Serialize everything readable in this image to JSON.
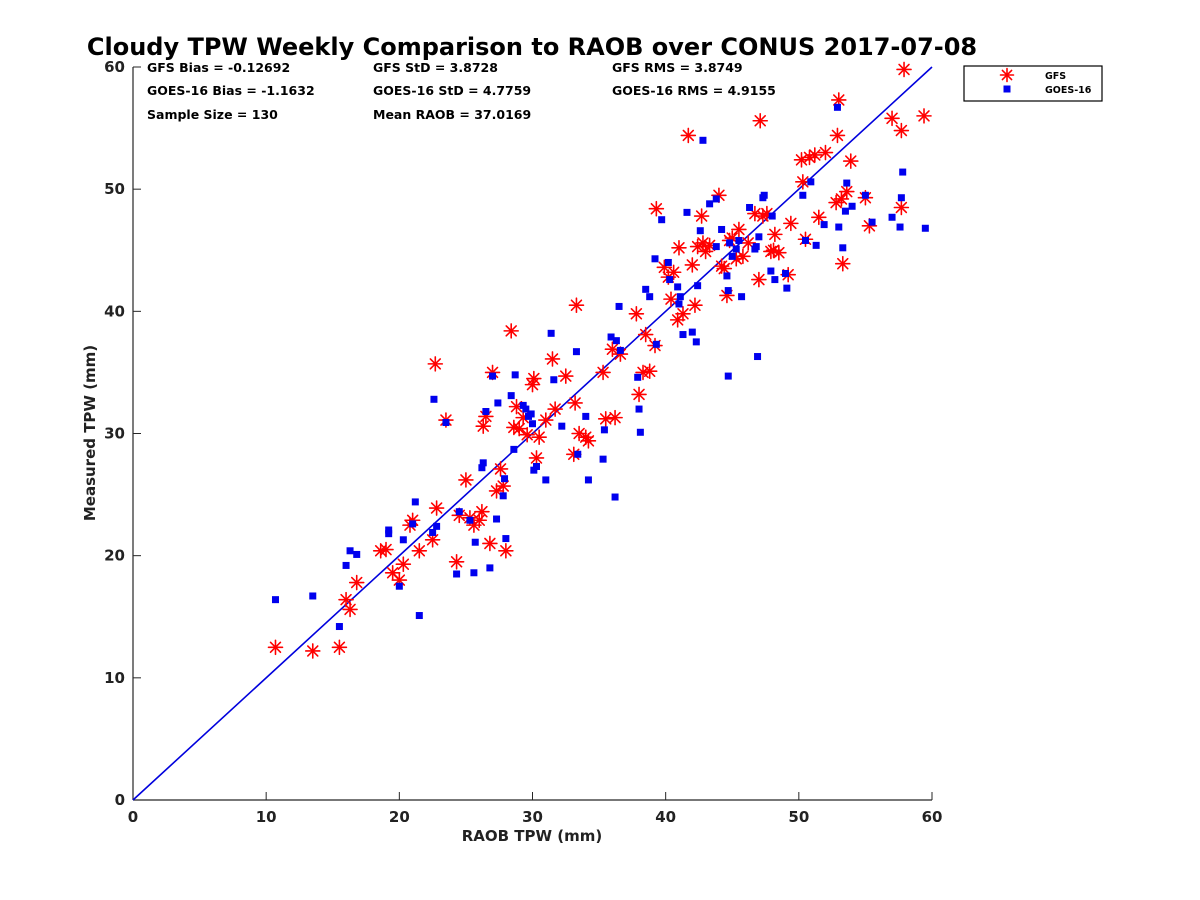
{
  "chart_data": {
    "type": "scatter",
    "title": "Cloudy TPW Weekly Comparison to RAOB over CONUS 2017-07-08",
    "xlabel": "RAOB TPW (mm)",
    "ylabel": "Measured TPW (mm)",
    "xlim": [
      0,
      60
    ],
    "ylim": [
      0,
      60
    ],
    "xticks": [
      0,
      10,
      20,
      30,
      40,
      50,
      60
    ],
    "yticks": [
      0,
      10,
      20,
      30,
      40,
      50,
      60
    ],
    "grid": false,
    "legend_position": "outside-top-right",
    "reference_line": {
      "from": [
        0,
        0
      ],
      "to": [
        60,
        60
      ],
      "color": "#0000dd"
    },
    "stats": {
      "gfs_bias": "GFS Bias = -0.12692",
      "goes_bias": "GOES-16 Bias = -1.1632",
      "sample_size": "Sample Size = 130",
      "gfs_std": "GFS StD = 3.8728",
      "goes_std": "GOES-16 StD = 4.7759",
      "mean_raob": "Mean RAOB = 37.0169",
      "gfs_rms": "GFS RMS = 3.8749",
      "goes_rms": "GOES-16 RMS = 4.9155"
    },
    "series": [
      {
        "name": "GFS",
        "marker": "asterisk",
        "color": "#ff0000",
        "points": [
          [
            10.7,
            12.5
          ],
          [
            13.5,
            12.2
          ],
          [
            15.5,
            12.5
          ],
          [
            16,
            16.4
          ],
          [
            16.3,
            15.6
          ],
          [
            16.8,
            17.8
          ],
          [
            18.6,
            20.4
          ],
          [
            19,
            20.5
          ],
          [
            19.5,
            18.6
          ],
          [
            20,
            18
          ],
          [
            20.3,
            19.3
          ],
          [
            20.8,
            22.5
          ],
          [
            21,
            22.9
          ],
          [
            21.5,
            20.4
          ],
          [
            22.5,
            21.3
          ],
          [
            22.7,
            35.7
          ],
          [
            22.8,
            23.9
          ],
          [
            23.5,
            31.1
          ],
          [
            24.3,
            19.5
          ],
          [
            24.5,
            23.3
          ],
          [
            25,
            26.2
          ],
          [
            25.3,
            23.1
          ],
          [
            25.6,
            22.5
          ],
          [
            26,
            22.9
          ],
          [
            26.2,
            23.6
          ],
          [
            26.3,
            30.6
          ],
          [
            26.5,
            31.4
          ],
          [
            26.8,
            21
          ],
          [
            27,
            35
          ],
          [
            27.3,
            25.3
          ],
          [
            27.6,
            27.1
          ],
          [
            27.8,
            25.7
          ],
          [
            28,
            20.4
          ],
          [
            28.4,
            38.4
          ],
          [
            28.6,
            30.5
          ],
          [
            28.8,
            32.2
          ],
          [
            29,
            30.4
          ],
          [
            29.3,
            31.3
          ],
          [
            29.6,
            29.9
          ],
          [
            30,
            34
          ],
          [
            30.1,
            34.5
          ],
          [
            30.3,
            28
          ],
          [
            30.5,
            29.7
          ],
          [
            31,
            31.1
          ],
          [
            31.5,
            36.1
          ],
          [
            31.7,
            32
          ],
          [
            32.5,
            34.7
          ],
          [
            33.1,
            28.3
          ],
          [
            33.2,
            32.5
          ],
          [
            33.3,
            40.5
          ],
          [
            33.5,
            30
          ],
          [
            34,
            29.7
          ],
          [
            34.2,
            29.4
          ],
          [
            35.3,
            35
          ],
          [
            35.5,
            31.2
          ],
          [
            36,
            36.9
          ],
          [
            36.2,
            31.3
          ],
          [
            36.6,
            36.5
          ],
          [
            37.8,
            39.8
          ],
          [
            38,
            33.2
          ],
          [
            38.3,
            35
          ],
          [
            38.5,
            38.1
          ],
          [
            38.8,
            35.1
          ],
          [
            39.2,
            37.2
          ],
          [
            39.3,
            48.4
          ],
          [
            39.9,
            43.6
          ],
          [
            40.2,
            42.8
          ],
          [
            40.4,
            41
          ],
          [
            40.6,
            43.2
          ],
          [
            40.9,
            39.3
          ],
          [
            41,
            45.2
          ],
          [
            41.3,
            39.8
          ],
          [
            41.7,
            54.4
          ],
          [
            42,
            43.8
          ],
          [
            42.2,
            40.5
          ],
          [
            42.4,
            45.3
          ],
          [
            42.7,
            47.8
          ],
          [
            42.8,
            45.6
          ],
          [
            43,
            44.9
          ],
          [
            43.3,
            45.4
          ],
          [
            44,
            49.5
          ],
          [
            44.2,
            43.7
          ],
          [
            44.4,
            43.5
          ],
          [
            44.6,
            41.3
          ],
          [
            44.8,
            45.8
          ],
          [
            45,
            46
          ],
          [
            45.3,
            44.3
          ],
          [
            45.5,
            46.7
          ],
          [
            45.8,
            44.5
          ],
          [
            46.2,
            45.6
          ],
          [
            46.7,
            48
          ],
          [
            47,
            42.6
          ],
          [
            47.1,
            55.6
          ],
          [
            47.3,
            47.8
          ],
          [
            47.6,
            48
          ],
          [
            47.9,
            44.9
          ],
          [
            48.1,
            45
          ],
          [
            48.2,
            46.3
          ],
          [
            48.5,
            44.8
          ],
          [
            49.2,
            43
          ],
          [
            49.4,
            47.2
          ],
          [
            50.2,
            52.4
          ],
          [
            50.3,
            50.6
          ],
          [
            50.5,
            45.9
          ],
          [
            50.8,
            52.6
          ],
          [
            51.2,
            52.8
          ],
          [
            51.5,
            47.7
          ],
          [
            52,
            53
          ],
          [
            52.8,
            48.9
          ],
          [
            52.9,
            54.4
          ],
          [
            53,
            57.3
          ],
          [
            53.2,
            49.2
          ],
          [
            53.3,
            43.9
          ],
          [
            53.6,
            49.8
          ],
          [
            53.9,
            52.3
          ],
          [
            55,
            49.3
          ],
          [
            55.3,
            47
          ],
          [
            57,
            55.8
          ],
          [
            57.7,
            54.8
          ],
          [
            57.7,
            48.5
          ],
          [
            57.9,
            59.8
          ],
          [
            59.4,
            56
          ]
        ]
      },
      {
        "name": "GOES-16",
        "marker": "square",
        "color": "#0000ee",
        "points": [
          [
            10.7,
            16.4
          ],
          [
            13.5,
            16.7
          ],
          [
            15.5,
            14.2
          ],
          [
            16,
            19.2
          ],
          [
            16.3,
            20.4
          ],
          [
            16.8,
            20.1
          ],
          [
            19.2,
            21.8
          ],
          [
            19.2,
            22.1
          ],
          [
            20,
            17.5
          ],
          [
            20.3,
            21.3
          ],
          [
            21,
            22.6
          ],
          [
            21.2,
            24.4
          ],
          [
            21.5,
            15.1
          ],
          [
            22.5,
            21.9
          ],
          [
            22.6,
            32.8
          ],
          [
            22.8,
            22.4
          ],
          [
            23.5,
            30.9
          ],
          [
            24.3,
            18.5
          ],
          [
            24.5,
            23.6
          ],
          [
            25.3,
            22.9
          ],
          [
            25.6,
            18.6
          ],
          [
            25.7,
            21.1
          ],
          [
            26.2,
            27.2
          ],
          [
            26.3,
            27.6
          ],
          [
            26.5,
            31.8
          ],
          [
            26.8,
            19
          ],
          [
            27,
            34.7
          ],
          [
            27.3,
            23
          ],
          [
            27.4,
            32.5
          ],
          [
            27.8,
            24.9
          ],
          [
            27.9,
            26.3
          ],
          [
            28,
            21.4
          ],
          [
            28.4,
            33.1
          ],
          [
            28.6,
            28.7
          ],
          [
            28.7,
            34.8
          ],
          [
            29.3,
            32.3
          ],
          [
            29.5,
            32
          ],
          [
            29.7,
            31.4
          ],
          [
            29.9,
            31.6
          ],
          [
            30,
            30.8
          ],
          [
            30.1,
            27
          ],
          [
            30.3,
            27.3
          ],
          [
            31,
            26.2
          ],
          [
            31.4,
            38.2
          ],
          [
            31.6,
            34.4
          ],
          [
            32.2,
            30.6
          ],
          [
            33.3,
            36.7
          ],
          [
            33.4,
            28.3
          ],
          [
            34,
            31.4
          ],
          [
            34.2,
            26.2
          ],
          [
            35.3,
            27.9
          ],
          [
            35.4,
            30.3
          ],
          [
            35.9,
            37.9
          ],
          [
            36.2,
            24.8
          ],
          [
            36.3,
            37.6
          ],
          [
            36.5,
            40.4
          ],
          [
            36.6,
            36.8
          ],
          [
            37.9,
            34.6
          ],
          [
            38,
            32
          ],
          [
            38.1,
            30.1
          ],
          [
            38.5,
            41.8
          ],
          [
            38.8,
            41.2
          ],
          [
            39.2,
            44.3
          ],
          [
            39.3,
            37.3
          ],
          [
            39.7,
            47.5
          ],
          [
            40.2,
            44
          ],
          [
            40.3,
            42.6
          ],
          [
            40.9,
            42
          ],
          [
            41,
            40.6
          ],
          [
            41.1,
            41.2
          ],
          [
            41.3,
            38.1
          ],
          [
            41.6,
            48.1
          ],
          [
            42,
            38.3
          ],
          [
            42.3,
            37.5
          ],
          [
            42.4,
            42.1
          ],
          [
            42.6,
            46.6
          ],
          [
            42.8,
            54
          ],
          [
            43.3,
            48.8
          ],
          [
            43.8,
            45.3
          ],
          [
            43.8,
            49.2
          ],
          [
            44.2,
            46.7
          ],
          [
            44.6,
            42.9
          ],
          [
            44.7,
            41.7
          ],
          [
            44.7,
            34.7
          ],
          [
            44.8,
            45.6
          ],
          [
            45,
            44.5
          ],
          [
            45.3,
            45.1
          ],
          [
            45.5,
            45.8
          ],
          [
            45.7,
            41.2
          ],
          [
            46.3,
            48.5
          ],
          [
            46.7,
            45.1
          ],
          [
            46.8,
            45.3
          ],
          [
            46.9,
            36.3
          ],
          [
            47,
            46.1
          ],
          [
            47.3,
            49.3
          ],
          [
            47.4,
            49.5
          ],
          [
            47.9,
            43.3
          ],
          [
            48,
            47.8
          ],
          [
            48.2,
            42.6
          ],
          [
            49,
            43.1
          ],
          [
            49.1,
            41.9
          ],
          [
            50.3,
            49.5
          ],
          [
            50.5,
            45.8
          ],
          [
            50.9,
            50.6
          ],
          [
            51.3,
            45.4
          ],
          [
            51.9,
            47.1
          ],
          [
            52.9,
            56.7
          ],
          [
            53,
            46.9
          ],
          [
            53.3,
            45.2
          ],
          [
            53.5,
            48.2
          ],
          [
            53.6,
            50.5
          ],
          [
            54,
            48.6
          ],
          [
            55,
            49.5
          ],
          [
            55.5,
            47.3
          ],
          [
            57,
            47.7
          ],
          [
            57.6,
            46.9
          ],
          [
            57.7,
            49.3
          ],
          [
            57.8,
            51.4
          ],
          [
            59.5,
            46.8
          ]
        ]
      }
    ]
  }
}
